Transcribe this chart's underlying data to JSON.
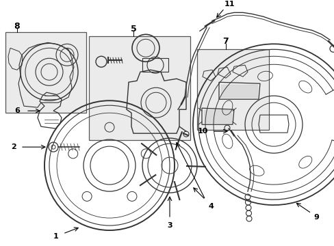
{
  "background_color": "#ffffff",
  "line_color": "#333333",
  "box_fill": "#ebebeb",
  "figsize": [
    4.89,
    3.6
  ],
  "dpi": 100,
  "xlim": [
    0,
    489
  ],
  "ylim": [
    0,
    360
  ]
}
